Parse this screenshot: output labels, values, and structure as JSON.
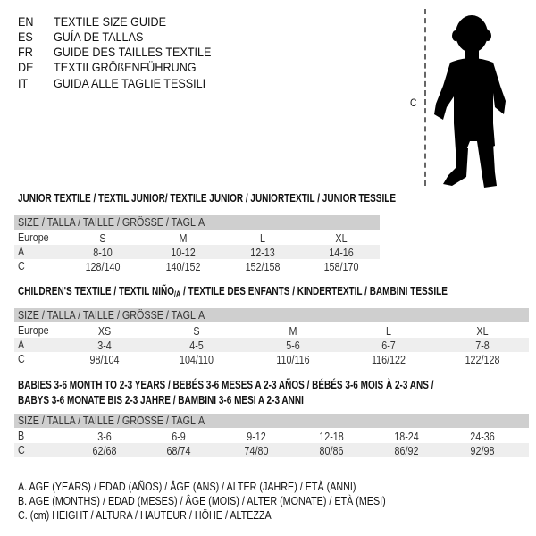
{
  "titles": [
    {
      "code": "EN",
      "text": "TEXTILE SIZE GUIDE"
    },
    {
      "code": "ES",
      "text": "GUÍA DE TALLAS"
    },
    {
      "code": "FR",
      "text": "GUIDE DES TAILLES TEXTILE"
    },
    {
      "code": "DE",
      "text": "TEXTILGRÖßENFÜHRUNG"
    },
    {
      "code": "IT",
      "text": "GUIDA ALLE TAGLIE TESSILI"
    }
  ],
  "figure": {
    "measure_label": "C",
    "icon": "child-silhouette"
  },
  "junior": {
    "title": "JUNIOR TEXTILE / TEXTIL JUNIOR/ TEXTILE JUNIOR / JUNIORTEXTIL / JUNIOR TESSILE",
    "header": "SIZE / TALLA / TAILLE / GRÖSSE / TAGLIA",
    "rows": [
      {
        "label": "Europe",
        "cells": [
          "S",
          "M",
          "L",
          "XL"
        ]
      },
      {
        "label": "A",
        "cells": [
          "8-10",
          "10-12",
          "12-13",
          "14-16"
        ]
      },
      {
        "label": "C",
        "cells": [
          "128/140",
          "140/152",
          "152/158",
          "158/170"
        ]
      }
    ]
  },
  "children": {
    "title_pre": "CHILDREN'S TEXTILE / TEXTIL NIÑO",
    "title_sub": "/A",
    "title_post": " / TEXTILE DES ENFANTS / KINDERTEXTIL / BAMBINI TESSILE",
    "header": "SIZE / TALLA / TAILLE / GRÖSSE / TAGLIA",
    "rows": [
      {
        "label": "Europe",
        "cells": [
          "XS",
          "S",
          "M",
          "L",
          "XL"
        ]
      },
      {
        "label": "A",
        "cells": [
          "3-4",
          "4-5",
          "5-6",
          "6-7",
          "7-8"
        ]
      },
      {
        "label": "C",
        "cells": [
          "98/104",
          "104/110",
          "110/116",
          "116/122",
          "122/128"
        ]
      }
    ]
  },
  "babies": {
    "title_line1": "BABIES 3-6 MONTH TO 2-3 YEARS / BEBÉS 3-6 MESES A 2-3 AÑOS / BÉBÉS 3-6 MOIS À 2-3 ANS /",
    "title_line2": "BABYS 3-6 MONATE BIS 2-3 JAHRE / BAMBINI 3-6 MESI A 2-3 ANNI",
    "header": "SIZE / TALLA / TAILLE / GRÖSSE / TAGLIA",
    "rows": [
      {
        "label": "B",
        "cells": [
          "3-6",
          "6-9",
          "9-12",
          "12-18",
          "18-24",
          "24-36"
        ]
      },
      {
        "label": "C",
        "cells": [
          "62/68",
          "68/74",
          "74/80",
          "80/86",
          "86/92",
          "92/98"
        ]
      }
    ]
  },
  "legend": [
    "A. AGE (YEARS) / EDAD (AÑOS) / ÂGE (ANS) / ALTER (JAHRE) / ETÀ (ANNI)",
    "B. AGE (MONTHS) / EDAD (MESES) / ÂGE (MOIS) / ALTER (MONATE) / ETÀ (MESI)",
    "C. (cm) HEIGHT / ALTURA / HAUTEUR / HÖHE / ALTEZZA"
  ],
  "colors": {
    "header_bg": "#cfcfcf",
    "stripe_bg": "#eeeeee"
  }
}
